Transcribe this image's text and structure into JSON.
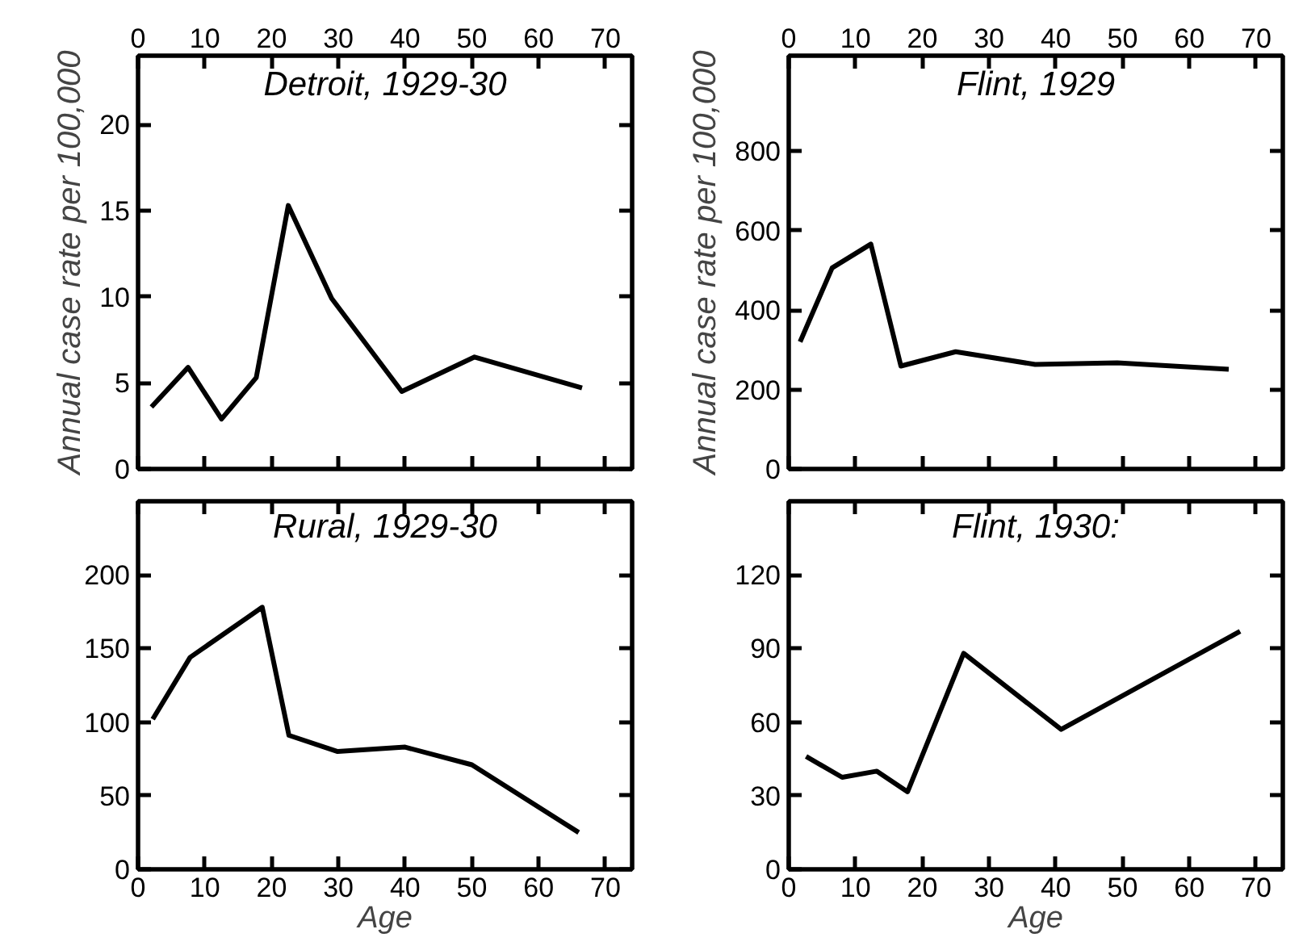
{
  "chart_data": [
    {
      "type": "line",
      "title": "Detroit, 1929-30",
      "ylabel": "Annual case rate per 100,000",
      "x": [
        2,
        7.5,
        12.5,
        17.7,
        22.5,
        29,
        39.5,
        50.4,
        66.5
      ],
      "values": [
        3.6,
        5.9,
        2.9,
        5.3,
        15.3,
        9.9,
        4.5,
        6.5,
        4.7
      ],
      "color": "#000000",
      "xlim": [
        0,
        74
      ],
      "xticks": [
        0,
        10,
        20,
        30,
        40,
        50,
        60,
        70
      ],
      "ylim": [
        0,
        24
      ],
      "yticks": [
        0,
        5,
        10,
        15,
        20
      ]
    },
    {
      "type": "line",
      "title": "Flint, 1929",
      "ylabel": "Annual case rate per 100,000",
      "x": [
        1.7,
        6.5,
        12.3,
        16.8,
        25,
        36.9,
        49.2,
        65.9
      ],
      "values": [
        320,
        506,
        566,
        259,
        295,
        263,
        267,
        251
      ],
      "color": "#000000",
      "xlim": [
        0,
        74
      ],
      "xticks": [
        0,
        10,
        20,
        30,
        40,
        50,
        60,
        70
      ],
      "ylim": [
        0,
        1040
      ],
      "yticks": [
        0,
        200,
        400,
        600,
        800
      ]
    },
    {
      "type": "line",
      "title": "Rural, 1929-30",
      "xlabel": "Age",
      "x": [
        2.2,
        7.8,
        18.6,
        22.6,
        29.9,
        40,
        50,
        66
      ],
      "values": [
        102,
        144,
        178,
        91,
        80,
        83,
        71,
        25
      ],
      "color": "#000000",
      "xlim": [
        0,
        74
      ],
      "xticks": [
        0,
        10,
        20,
        30,
        40,
        50,
        60,
        70
      ],
      "ylim": [
        0,
        250
      ],
      "yticks": [
        0,
        50,
        100,
        150,
        200
      ]
    },
    {
      "type": "line",
      "title": "Flint, 1930:",
      "xlabel": "Age",
      "x": [
        2.6,
        8,
        13.2,
        17.8,
        26.2,
        40.8,
        67.6
      ],
      "values": [
        46,
        37.5,
        40,
        31.6,
        88,
        57,
        97
      ],
      "color": "#000000",
      "xlim": [
        0,
        74
      ],
      "xticks": [
        0,
        10,
        20,
        30,
        40,
        50,
        60,
        70
      ],
      "ylim": [
        0,
        150
      ],
      "yticks": [
        0,
        30,
        60,
        90,
        120
      ]
    }
  ]
}
